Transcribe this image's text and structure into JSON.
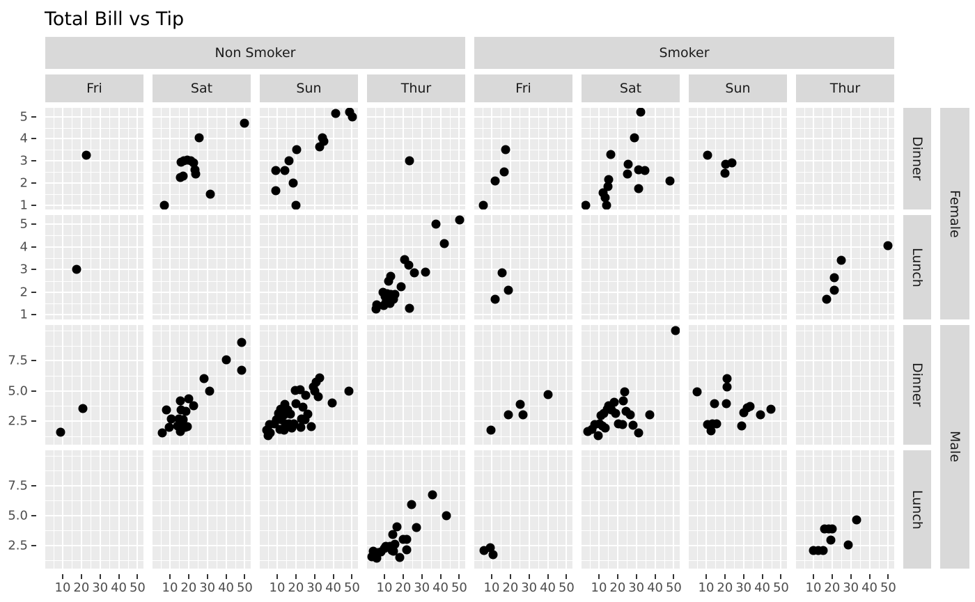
{
  "title": "Total Bill vs Tip",
  "colors": {
    "strip_bg": "#d9d9d9",
    "panel_bg": "#ebebeb",
    "gridline": "#ffffff",
    "point": "#000000",
    "axis_text": "#4d4d4d",
    "title_text": "#000000"
  },
  "chart_data": {
    "type": "scatter",
    "title": "Total Bill vs Tip",
    "x_field": "total_bill",
    "y_field": "tip",
    "legend": "none",
    "grid": "on",
    "facet_col_outer": [
      "Non Smoker",
      "Smoker"
    ],
    "facet_col_inner": [
      "Fri",
      "Sat",
      "Sun",
      "Thur"
    ],
    "facet_row_outer": [
      "Female",
      "Male"
    ],
    "facet_row_inner": [
      "Dinner",
      "Lunch"
    ],
    "x_ticks": [
      10,
      20,
      30,
      40,
      50
    ],
    "x_minor": [
      5,
      15,
      25,
      35,
      45
    ],
    "x_domain": [
      0.7,
      53.2
    ],
    "row_scales": [
      {
        "sex": "Female",
        "ticks": [
          1,
          2,
          3,
          4,
          5
        ],
        "minor": [
          1.5,
          2.5,
          3.5,
          4.5
        ],
        "domain": [
          0.8,
          5.4
        ],
        "decimals": 0
      },
      {
        "sex": "Male",
        "ticks": [
          2.5,
          5.0,
          7.5
        ],
        "minor": [
          1.25,
          3.75,
          6.25,
          8.75,
          10.0
        ],
        "domain": [
          0.55,
          10.45
        ],
        "decimals": 1
      }
    ],
    "rows": [
      {
        "sex": "Female",
        "time": "Dinner"
      },
      {
        "sex": "Female",
        "time": "Lunch"
      },
      {
        "sex": "Male",
        "time": "Dinner"
      },
      {
        "sex": "Male",
        "time": "Lunch"
      }
    ],
    "cols": [
      {
        "smoker": "Non Smoker",
        "day": "Fri"
      },
      {
        "smoker": "Non Smoker",
        "day": "Sat"
      },
      {
        "smoker": "Non Smoker",
        "day": "Sun"
      },
      {
        "smoker": "Non Smoker",
        "day": "Thur"
      },
      {
        "smoker": "Smoker",
        "day": "Fri"
      },
      {
        "smoker": "Smoker",
        "day": "Sat"
      },
      {
        "smoker": "Smoker",
        "day": "Sun"
      },
      {
        "smoker": "Smoker",
        "day": "Thur"
      }
    ],
    "points": [
      [
        [
          [
            22.8,
            3.25
          ]
        ],
        [
          [
            7,
            1.0
          ],
          [
            15.5,
            2.25
          ],
          [
            17,
            2.3
          ],
          [
            15.8,
            2.95
          ],
          [
            17.3,
            3.0
          ],
          [
            19.3,
            3.05
          ],
          [
            21,
            3.0
          ],
          [
            22.5,
            2.9
          ],
          [
            23.3,
            2.6
          ],
          [
            23.8,
            2.4
          ],
          [
            25.8,
            4.05
          ],
          [
            31.5,
            1.5
          ],
          [
            50,
            4.7
          ]
        ],
        [
          [
            41.4,
            5.15
          ],
          [
            48.8,
            5.2
          ],
          [
            50.3,
            5.0
          ],
          [
            34.1,
            4.05
          ],
          [
            35.1,
            3.9
          ],
          [
            32.8,
            3.65
          ],
          [
            20.3,
            3.5
          ],
          [
            16.5,
            3.0
          ],
          [
            9.1,
            2.55
          ],
          [
            14,
            2.55
          ],
          [
            18.5,
            2.0
          ],
          [
            9.4,
            1.65
          ],
          [
            19.9,
            1.0
          ]
        ],
        [
          [
            23.5,
            3.0
          ]
        ],
        [
          [
            17.6,
            3.5
          ],
          [
            16.7,
            2.5
          ],
          [
            12,
            2.1
          ],
          [
            5.7,
            1.0
          ]
        ],
        [
          [
            32.5,
            5.2
          ],
          [
            29,
            4.05
          ],
          [
            16.4,
            3.3
          ],
          [
            25.6,
            2.85
          ],
          [
            31.2,
            2.6
          ],
          [
            34.4,
            2.55
          ],
          [
            25.4,
            2.4
          ],
          [
            15.4,
            2.15
          ],
          [
            14.9,
            1.85
          ],
          [
            12.3,
            1.55
          ],
          [
            13.3,
            1.35
          ],
          [
            31.3,
            1.75
          ],
          [
            48,
            2.1
          ],
          [
            3.1,
            1.0
          ],
          [
            14,
            1.0
          ]
        ],
        [
          [
            10.6,
            3.25
          ],
          [
            20.6,
            2.85
          ],
          [
            23.6,
            2.9
          ],
          [
            19.9,
            2.45
          ]
        ],
        []
      ],
      [
        [
          [
            17.5,
            3.0
          ]
        ],
        [],
        [],
        [
          [
            37.4,
            5.0
          ],
          [
            50.1,
            5.2
          ],
          [
            42,
            4.15
          ],
          [
            20.9,
            3.45
          ],
          [
            22.9,
            3.2
          ],
          [
            26,
            2.85
          ],
          [
            32,
            2.9
          ],
          [
            13.4,
            2.7
          ],
          [
            12.3,
            2.5
          ],
          [
            19.1,
            2.25
          ],
          [
            9.2,
            2.0
          ],
          [
            11.4,
            1.95
          ],
          [
            13.5,
            1.9
          ],
          [
            15.6,
            1.9
          ],
          [
            10.2,
            1.8
          ],
          [
            12.6,
            1.75
          ],
          [
            14.7,
            1.7
          ],
          [
            10.8,
            1.55
          ],
          [
            12.9,
            1.5
          ],
          [
            6,
            1.45
          ],
          [
            5.4,
            1.25
          ],
          [
            9.6,
            1.4
          ],
          [
            23.3,
            1.3
          ]
        ],
        [
          [
            15.6,
            2.85
          ],
          [
            18.9,
            2.1
          ],
          [
            12,
            1.7
          ]
        ],
        [],
        [],
        [
          [
            50,
            4.05
          ],
          [
            25,
            3.4
          ],
          [
            21.2,
            2.65
          ],
          [
            21.2,
            2.1
          ],
          [
            17.2,
            1.7
          ]
        ]
      ],
      [
        [
          [
            20.9,
            3.55
          ],
          [
            9,
            1.6
          ]
        ],
        [
          [
            48.5,
            9.0
          ],
          [
            40,
            7.6
          ],
          [
            48.5,
            6.7
          ],
          [
            28.3,
            6.0
          ],
          [
            31.3,
            5.0
          ],
          [
            20.1,
            4.35
          ],
          [
            15.7,
            4.2
          ],
          [
            22.7,
            3.75
          ],
          [
            16,
            3.4
          ],
          [
            18.6,
            3.3
          ],
          [
            8.2,
            3.45
          ],
          [
            10.7,
            2.7
          ],
          [
            15,
            2.7
          ],
          [
            17,
            2.6
          ],
          [
            15.7,
            2.3
          ],
          [
            14,
            2.1
          ],
          [
            16.5,
            2.0
          ],
          [
            18.2,
            2.0
          ],
          [
            19.4,
            2.05
          ],
          [
            9.6,
            2.0
          ],
          [
            6,
            1.5
          ],
          [
            15.5,
            1.65
          ]
        ],
        [
          [
            32.8,
            6.1
          ],
          [
            31,
            5.75
          ],
          [
            29.4,
            5.35
          ],
          [
            19.7,
            5.05
          ],
          [
            22.2,
            5.1
          ],
          [
            30.1,
            5.0
          ],
          [
            48.5,
            5.0
          ],
          [
            25.3,
            4.65
          ],
          [
            31.9,
            4.5
          ],
          [
            39.4,
            4.0
          ],
          [
            14.1,
            3.9
          ],
          [
            20.1,
            3.95
          ],
          [
            23.7,
            3.65
          ],
          [
            12,
            3.5
          ],
          [
            15.6,
            3.45
          ],
          [
            10.8,
            3.15
          ],
          [
            13.8,
            3.05
          ],
          [
            17,
            3.1
          ],
          [
            26.5,
            3.1
          ],
          [
            23.1,
            2.7
          ],
          [
            24.9,
            2.65
          ],
          [
            9.6,
            2.65
          ],
          [
            12.2,
            2.6
          ],
          [
            6,
            2.2
          ],
          [
            8.7,
            2.25
          ],
          [
            14.4,
            2.3
          ],
          [
            16.5,
            2.25
          ],
          [
            19.1,
            2.3
          ],
          [
            11.4,
            1.8
          ],
          [
            13.8,
            1.75
          ],
          [
            4.6,
            1.75
          ],
          [
            6.3,
            1.55
          ],
          [
            22.7,
            2.0
          ],
          [
            28.3,
            2.05
          ],
          [
            5.1,
            1.3
          ],
          [
            17.9,
            1.95
          ]
        ],
        [],
        [
          [
            9.6,
            1.75
          ],
          [
            18.8,
            3.05
          ],
          [
            25.1,
            3.9
          ],
          [
            26.9,
            3.05
          ],
          [
            40,
            4.7
          ]
        ],
        [
          [
            50.8,
            10.0
          ],
          [
            23.9,
            4.9
          ],
          [
            23,
            4.15
          ],
          [
            18.1,
            4.05
          ],
          [
            15.3,
            3.8
          ],
          [
            14.3,
            3.5
          ],
          [
            16.8,
            3.45
          ],
          [
            19.1,
            3.15
          ],
          [
            12.7,
            3.15
          ],
          [
            11.2,
            2.95
          ],
          [
            24.5,
            3.3
          ],
          [
            26.6,
            3.0
          ],
          [
            37.3,
            3.05
          ],
          [
            7.9,
            2.2
          ],
          [
            10.2,
            2.3
          ],
          [
            11.7,
            2.1
          ],
          [
            13.3,
            1.95
          ],
          [
            6.3,
            1.8
          ],
          [
            4,
            1.65
          ],
          [
            9.8,
            1.3
          ],
          [
            20.4,
            2.25
          ],
          [
            22.6,
            2.2
          ],
          [
            28.1,
            2.15
          ],
          [
            31.2,
            1.5
          ]
        ],
        [
          [
            5,
            4.9
          ],
          [
            21.1,
            6.0
          ],
          [
            21.1,
            5.35
          ],
          [
            14.5,
            3.95
          ],
          [
            20.7,
            3.95
          ],
          [
            32,
            3.6
          ],
          [
            33.3,
            3.7
          ],
          [
            30.1,
            3.2
          ],
          [
            39.1,
            3.05
          ],
          [
            44.8,
            3.5
          ],
          [
            10.7,
            2.2
          ],
          [
            13.5,
            2.25
          ],
          [
            15.7,
            2.25
          ],
          [
            12.6,
            1.7
          ],
          [
            28.9,
            2.1
          ]
        ],
        []
      ],
      [
        [],
        [],
        [],
        [
          [
            35.6,
            6.75
          ],
          [
            24.4,
            5.9
          ],
          [
            43.2,
            5.0
          ],
          [
            16.8,
            4.05
          ],
          [
            27.2,
            4.0
          ],
          [
            14.5,
            3.4
          ],
          [
            20.1,
            3.0
          ],
          [
            21.8,
            3.0
          ],
          [
            15.6,
            2.6
          ],
          [
            12.9,
            2.4
          ],
          [
            10.8,
            2.4
          ],
          [
            9.9,
            2.25
          ],
          [
            22.1,
            2.1
          ],
          [
            14.1,
            2.05
          ],
          [
            15,
            2.0
          ],
          [
            6.6,
            1.9
          ],
          [
            8.2,
            1.95
          ],
          [
            3.9,
            2.0
          ],
          [
            4.3,
            1.7
          ],
          [
            3.4,
            1.55
          ],
          [
            18.2,
            1.5
          ],
          [
            5.8,
            1.45
          ]
        ],
        [
          [
            5.9,
            2.05
          ],
          [
            9.3,
            2.3
          ],
          [
            10.8,
            1.7
          ]
        ],
        [],
        [],
        [
          [
            33,
            4.65
          ],
          [
            16.1,
            3.85
          ],
          [
            18.2,
            3.85
          ],
          [
            20.2,
            3.85
          ],
          [
            19.2,
            2.95
          ],
          [
            28.7,
            2.55
          ],
          [
            9.9,
            2.05
          ],
          [
            12.8,
            2.05
          ],
          [
            15.3,
            2.05
          ]
        ]
      ]
    ]
  }
}
